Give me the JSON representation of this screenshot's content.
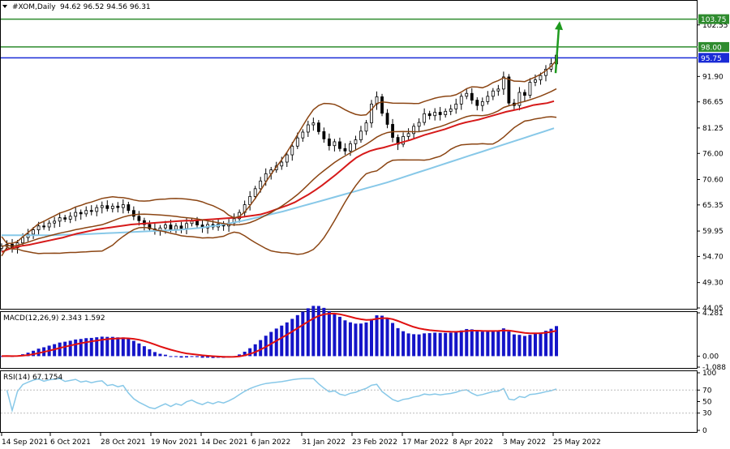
{
  "chart_data": [
    {
      "type": "candlestick",
      "symbol_label": "#XOM,Daily",
      "ohlc_label": "94.62 96.52 94.56 96.31",
      "ylim": [
        44.05,
        107.2
      ],
      "y_ticks": [
        "102.55",
        "91.90",
        "86.65",
        "81.25",
        "76.00",
        "70.60",
        "65.35",
        "59.95",
        "54.70",
        "49.30",
        "44.05"
      ],
      "levels": [
        {
          "value": 103.75,
          "label": "103.75",
          "color": "#2e8b2e",
          "bg": "#2e8b2e"
        },
        {
          "value": 98.0,
          "label": "98.00",
          "color": "#2e8b2e",
          "bg": "#2e8b2e"
        },
        {
          "value": 95.75,
          "label": "95.75",
          "color": "#1a2bd6",
          "bg": "#1a2bd6"
        }
      ],
      "arrow": {
        "from": 92.6,
        "to": 103.0,
        "color": "#1e9a1e"
      },
      "x_labels": [
        "14 Sep 2021",
        "6 Oct 2021",
        "28 Oct 2021",
        "19 Nov 2021",
        "14 Dec 2021",
        "6 Jan 2022",
        "31 Jan 2022",
        "23 Feb 2022",
        "17 Mar 2022",
        "8 Apr 2022",
        "3 May 2022",
        "25 May 2022"
      ],
      "candles_close": [
        56.8,
        57.2,
        56.5,
        57.5,
        58.6,
        59.3,
        60.2,
        61.0,
        60.8,
        61.6,
        62.0,
        62.7,
        62.4,
        63.0,
        63.8,
        63.5,
        64.2,
        64.0,
        64.8,
        65.2,
        64.6,
        65.1,
        64.8,
        65.4,
        64.2,
        63.0,
        62.1,
        61.3,
        60.4,
        60.0,
        60.6,
        61.2,
        60.3,
        61.0,
        60.5,
        61.5,
        62.0,
        61.2,
        60.6,
        61.3,
        60.8,
        61.4,
        61.0,
        61.6,
        62.5,
        63.8,
        65.4,
        67.1,
        68.7,
        70.3,
        71.8,
        72.6,
        73.4,
        74.2,
        75.7,
        77.5,
        79.2,
        80.4,
        81.9,
        82.3,
        80.5,
        79.0,
        77.6,
        78.4,
        77.0,
        76.5,
        78.0,
        78.8,
        80.6,
        82.3,
        86.2,
        87.7,
        84.3,
        82.0,
        79.3,
        77.9,
        79.5,
        80.1,
        81.6,
        82.4,
        84.2,
        83.8,
        84.5,
        84.0,
        84.7,
        85.2,
        86.2,
        87.8,
        88.4,
        87.0,
        85.9,
        86.7,
        87.8,
        88.9,
        89.3,
        91.8,
        86.4,
        85.9,
        88.6,
        88.0,
        90.7,
        91.2,
        92.1,
        93.4,
        94.5,
        96.3
      ],
      "ma_red": [
        55.6,
        56.2,
        56.6,
        56.9,
        57.1,
        57.4,
        57.7,
        58.0,
        58.3,
        58.6,
        59.0,
        59.4,
        59.7,
        60.0,
        60.3,
        60.5,
        60.7,
        60.9,
        61.1,
        61.3,
        61.4,
        61.5,
        61.6,
        61.7,
        61.8,
        61.9,
        62.0,
        62.1,
        62.1,
        62.2,
        62.3,
        62.4,
        62.5,
        62.6,
        62.7,
        62.8,
        63.0,
        63.2,
        63.4,
        63.8,
        64.3,
        64.8,
        65.3,
        65.9,
        66.7,
        67.5,
        68.4,
        69.4,
        70.5,
        71.6,
        72.8,
        74.0,
        75.1,
        75.9,
        76.5,
        76.9,
        77.2,
        77.6,
        78.0,
        78.4,
        78.8,
        79.3,
        79.8,
        80.2,
        80.6,
        81.0,
        81.5,
        82.0,
        82.4,
        82.7,
        83.0,
        83.4,
        83.8,
        84.2,
        84.6,
        84.9,
        85.2,
        85.6,
        86.0,
        86.2,
        86.4,
        86.8
      ],
      "ma_blue": [
        59.1,
        59.1,
        59.1,
        59.1,
        59.1,
        59.1,
        59.2,
        59.2,
        59.3,
        59.4,
        59.5,
        59.6,
        59.7,
        59.8,
        59.9,
        60.0,
        60.1,
        60.2,
        60.4,
        60.6,
        60.9,
        61.2,
        61.6,
        62.0,
        62.5,
        63.0,
        63.5,
        64.0,
        64.6,
        65.2,
        65.8,
        66.4,
        67.0,
        67.6,
        68.2,
        68.8,
        69.4,
        70.0,
        70.7,
        71.4,
        72.1,
        72.8,
        73.5,
        74.2,
        74.9,
        75.6,
        76.3,
        77.0,
        77.7,
        78.4,
        79.1,
        79.8,
        80.5,
        81.2
      ]
    },
    {
      "type": "macd",
      "label": "MACD(12,26,9) 2.343 1.592",
      "y_ticks": [
        "4.281",
        "0.00",
        "-1.088"
      ],
      "ylim": [
        -1.088,
        4.281
      ]
    },
    {
      "type": "rsi",
      "label": "RSI(14) 67.1754",
      "y_ticks": [
        "100",
        "70",
        "50",
        "30",
        "0"
      ],
      "ylim": [
        0,
        100
      ]
    }
  ],
  "colors": {
    "candle": "#000000",
    "bb": "#8b4513",
    "ma_fast": "#d61a1a",
    "ma_slow": "#87c8e8",
    "macd_hist": "#1414c8",
    "macd_signal": "#e01010",
    "rsi": "#87c8e8"
  }
}
